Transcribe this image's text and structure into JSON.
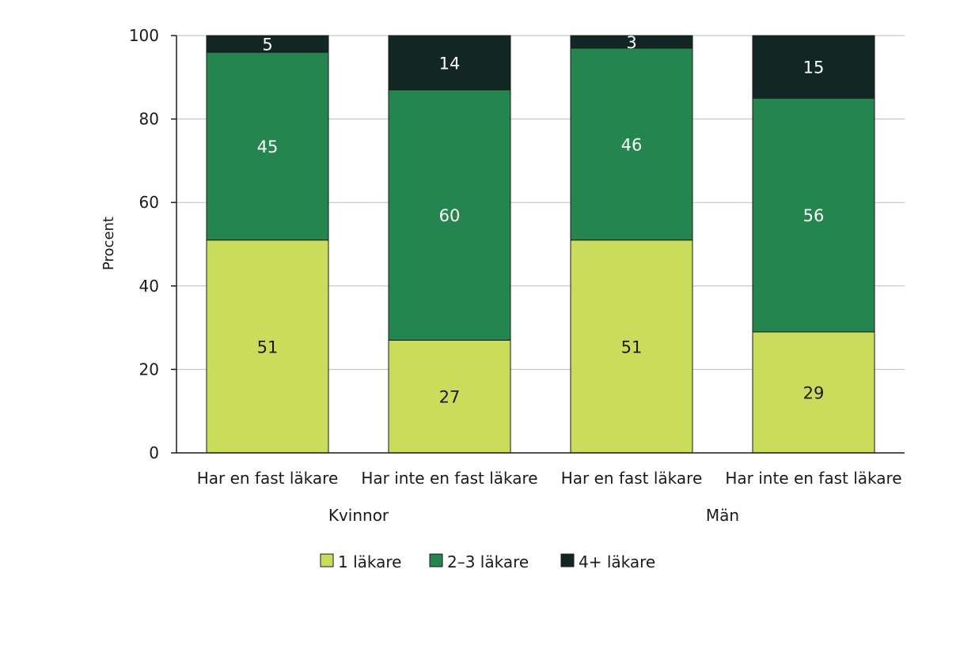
{
  "chart_data": {
    "type": "bar",
    "stacked": true,
    "categories": [
      "Har en fast läkare",
      "Har inte en fast läkare",
      "Har en fast läkare",
      "Har inte en fast läkare"
    ],
    "groups": [
      {
        "label": "Kvinnor",
        "category_indices": [
          0,
          1
        ]
      },
      {
        "label": "Män",
        "category_indices": [
          2,
          3
        ]
      }
    ],
    "series": [
      {
        "name": "1 läkare",
        "color": "#cadc5c",
        "label_color": "#1a1a1a",
        "values": [
          51,
          27,
          51,
          29
        ]
      },
      {
        "name": "2–3 läkare",
        "color": "#24854f",
        "label_color": "#ffffff",
        "values": [
          45,
          60,
          46,
          56
        ]
      },
      {
        "name": "4+ läkare",
        "color": "#122624",
        "label_color": "#ffffff",
        "values": [
          5,
          14,
          3,
          15
        ]
      }
    ],
    "ylabel": "Procent",
    "xlabel": "",
    "ylim": [
      0,
      100
    ],
    "yticks": [
      0,
      20,
      40,
      60,
      80,
      100
    ],
    "grid": true,
    "legend_position": "bottom"
  }
}
